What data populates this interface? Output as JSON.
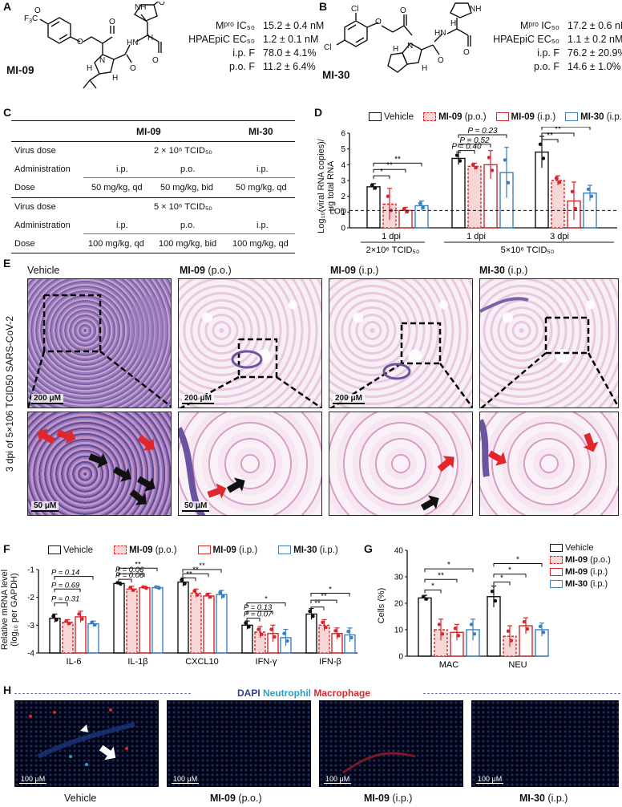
{
  "panelA": {
    "label": "A",
    "compound": "MI-09",
    "substituent": "F₃C",
    "props": [
      {
        "k": "Mᵖʳᵒ IC₅₀",
        "v": "15.2 ± 0.4 nM"
      },
      {
        "k": "HPAEpiC EC₅₀",
        "v": "1.2 ± 0.1 nM"
      },
      {
        "k": "i.p. F",
        "v": "78.0 ± 4.1%"
      },
      {
        "k": "p.o. F",
        "v": "11.2 ± 6.4%"
      }
    ]
  },
  "panelB": {
    "label": "B",
    "compound": "MI-30",
    "substituent": "Cl",
    "props": [
      {
        "k": "Mᵖʳᵒ IC₅₀",
        "v": "17.2 ± 0.6 nM"
      },
      {
        "k": "HPAEpiC EC₅₀",
        "v": "1.1 ± 0.2 nM"
      },
      {
        "k": "i.p. F",
        "v": "76.2 ± 20.9%"
      },
      {
        "k": "p.o. F",
        "v": "14.6 ± 1.0%"
      }
    ]
  },
  "panelC": {
    "label": "C",
    "head": [
      "",
      "MI-09",
      "MI-30"
    ],
    "block1": {
      "virus_dose_label": "Virus dose",
      "virus_dose": "2 × 10⁶ TCID₅₀",
      "admin_label": "Administration",
      "admin": [
        "i.p.",
        "p.o.",
        "i.p."
      ],
      "dose_label": "Dose",
      "dose": [
        "50 mg/kg, qd",
        "50 mg/kg, bid",
        "50 mg/kg, qd"
      ]
    },
    "block2": {
      "virus_dose_label": "Virus dose",
      "virus_dose": "5 × 10⁶ TCID₅₀",
      "admin_label": "Administration",
      "admin": [
        "i.p.",
        "p.o.",
        "i.p."
      ],
      "dose_label": "Dose",
      "dose": [
        "100 mg/kg, qd",
        "100 mg/kg, bid",
        "100 mg/kg, qd"
      ]
    }
  },
  "panelD": {
    "label": "D",
    "ylabel1": "Log₁₀(viral RNA copies)/",
    "ylabel2": "μg total RNA",
    "lod": "LOD",
    "legend": [
      {
        "name": "Vehicle",
        "suffix": ""
      },
      {
        "name": "MI-09",
        "suffix": " (p.o.)"
      },
      {
        "name": "MI-09",
        "suffix": " (i.p.)"
      },
      {
        "name": "MI-30",
        "suffix": " (i.p.)"
      }
    ],
    "groups": [
      {
        "dpi": "1 dpi",
        "dose": "2×10⁶ TCID₅₀"
      },
      {
        "dpi": "1 dpi",
        "dose": "5×10⁶ TCID₅₀"
      },
      {
        "dpi": "3 dpi",
        "dose": ""
      }
    ],
    "sig": [
      "*",
      "**",
      "**",
      "P = 0.40",
      "P = 0.52",
      "P = 0.23",
      "**",
      "**",
      "**"
    ],
    "yticks": [
      "0",
      "1",
      "2",
      "3",
      "4",
      "5",
      "6"
    ]
  },
  "chart_data": [
    {
      "type": "bar",
      "title": "",
      "ylabel": "Log10(viral RNA copies)/μg total RNA",
      "ylim": [
        0,
        6
      ],
      "lod": 1.1,
      "categories": [
        "1 dpi (2×10⁶)",
        "1 dpi (5×10⁶)",
        "3 dpi (5×10⁶)"
      ],
      "series": [
        {
          "name": "Vehicle",
          "values": [
            2.6,
            4.4,
            4.8
          ],
          "err": [
            0.2,
            0.4,
            1.0
          ]
        },
        {
          "name": "MI-09 (p.o.)",
          "values": [
            1.5,
            3.9,
            3.0
          ],
          "err": [
            1.0,
            0.2,
            0.3
          ]
        },
        {
          "name": "MI-09 (i.p.)",
          "values": [
            1.1,
            4.0,
            1.7
          ],
          "err": [
            0.2,
            0.9,
            1.2
          ]
        },
        {
          "name": "MI-30 (i.p.)",
          "values": [
            1.4,
            3.5,
            2.2
          ],
          "err": [
            0.3,
            1.6,
            0.5
          ]
        }
      ]
    },
    {
      "type": "bar",
      "title": "",
      "ylabel": "Relative mRNA level (log10 per GAPDH)",
      "ylim": [
        -4,
        -1
      ],
      "categories": [
        "IL-6",
        "IL-1β",
        "CXCL10",
        "IFN-γ",
        "IFN-β"
      ],
      "series": [
        {
          "name": "Vehicle",
          "values": [
            -2.75,
            -1.5,
            -1.45,
            -3.0,
            -2.6
          ],
          "err": [
            0.15,
            0.05,
            0.15,
            0.15,
            0.2
          ]
        },
        {
          "name": "MI-09 (p.o.)",
          "values": [
            -2.9,
            -1.7,
            -1.85,
            -3.25,
            -3.0
          ],
          "err": [
            0.1,
            0.1,
            0.15,
            0.2,
            0.2
          ]
        },
        {
          "name": "MI-09 (i.p.)",
          "values": [
            -2.7,
            -1.65,
            -1.95,
            -3.3,
            -3.3
          ],
          "err": [
            0.2,
            0.05,
            0.1,
            0.3,
            0.2
          ]
        },
        {
          "name": "MI-30 (i.p.)",
          "values": [
            -2.95,
            -1.65,
            -1.9,
            -3.45,
            -3.35
          ],
          "err": [
            0.1,
            0.05,
            0.15,
            0.3,
            0.25
          ]
        }
      ]
    },
    {
      "type": "bar",
      "title": "",
      "ylabel": "Cells (%)",
      "ylim": [
        0,
        40
      ],
      "categories": [
        "MAC",
        "NEU"
      ],
      "series": [
        {
          "name": "Vehicle",
          "values": [
            22,
            22.5
          ],
          "err": [
            1,
            4
          ]
        },
        {
          "name": "MI-09 (p.o.)",
          "values": [
            10,
            7.5
          ],
          "err": [
            4,
            4
          ]
        },
        {
          "name": "MI-09 (i.p.)",
          "values": [
            9,
            11.5
          ],
          "err": [
            3,
            3
          ]
        },
        {
          "name": "MI-30 (i.p.)",
          "values": [
            10,
            10
          ],
          "err": [
            4,
            2.5
          ]
        }
      ]
    }
  ],
  "panelE": {
    "label": "E",
    "side": "3 dpi of 5×106 TCID50 SARS-CoV-2",
    "cols": [
      {
        "name": "Vehicle",
        "suffix": ""
      },
      {
        "name": "MI-09",
        "suffix": " (p.o.)"
      },
      {
        "name": "MI-09",
        "suffix": " (i.p.)"
      },
      {
        "name": "MI-30",
        "suffix": " (i.p.)"
      }
    ],
    "scale_top": "200 μM",
    "scale_bottom": "50 μM"
  },
  "panelF": {
    "label": "F",
    "ylabel1": "Relative mRNA level",
    "ylabel2": "(log₁₀ per GAPDH)",
    "legend": [
      {
        "name": "Vehicle",
        "suffix": ""
      },
      {
        "name": "MI-09",
        "suffix": " (p.o.)"
      },
      {
        "name": "MI-09",
        "suffix": " (i.p.)"
      },
      {
        "name": "MI-30",
        "suffix": " (i.p.)"
      }
    ],
    "yticks": [
      "-1",
      "-2",
      "-3",
      "-4"
    ],
    "il6": [
      "P = 0.14",
      "P = 0.69",
      "P = 0.31"
    ],
    "il1b": [
      "P = 0.06",
      "P = 0.06",
      "**"
    ],
    "cxcl10": [
      "**",
      "**",
      "**"
    ],
    "ifng": [
      "*",
      "P = 0.13",
      "P = 0.07"
    ],
    "ifnb": [
      "**",
      "**",
      "*"
    ]
  },
  "panelG": {
    "label": "G",
    "ylabel": "Cells (%)",
    "yticks": [
      "0",
      "10",
      "20",
      "30",
      "40"
    ],
    "legend": [
      {
        "name": "Vehicle",
        "suffix": ""
      },
      {
        "name": "MI-09",
        "suffix": " (p.o.)"
      },
      {
        "name": "MI-09",
        "suffix": " (i.p.)"
      },
      {
        "name": "MI-30",
        "suffix": " (i.p.)"
      }
    ],
    "sig": [
      "*",
      "**",
      "*",
      "*",
      "*",
      "*"
    ]
  },
  "panelH": {
    "label": "H",
    "legend": [
      {
        "text": "DAPI",
        "color": "#2b3f8f"
      },
      {
        "text": " Neutrophil",
        "color": "#2a9fc4"
      },
      {
        "text": " Macrophage",
        "color": "#d8262b"
      }
    ],
    "scale": "100 μM",
    "cols": [
      {
        "name": "Vehicle",
        "suffix": ""
      },
      {
        "name": "MI-09",
        "suffix": " (p.o.)"
      },
      {
        "name": "MI-09",
        "suffix": " (i.p.)"
      },
      {
        "name": "MI-30",
        "suffix": " (i.p.)"
      }
    ]
  },
  "colors": {
    "vehicle": "#111111",
    "mi09po": "#d8262b",
    "mi09ip": "#d8262b",
    "mi30": "#3b7fc2",
    "fill_mi09": "#f6d6d6",
    "fill_mi30": "#d6e4f3"
  }
}
